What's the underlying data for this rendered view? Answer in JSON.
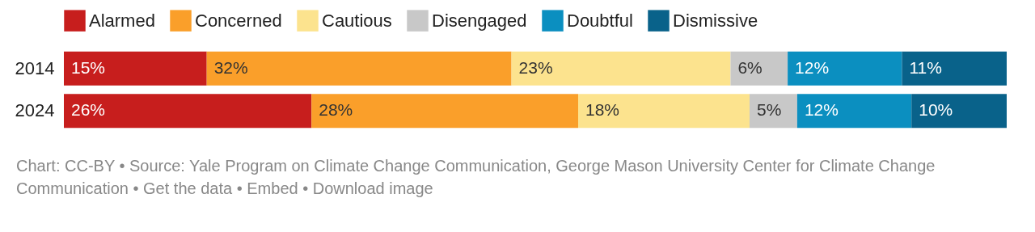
{
  "chart_data": {
    "type": "bar",
    "orientation": "horizontal",
    "stacked": true,
    "categories": [
      "2014",
      "2024"
    ],
    "series": [
      {
        "name": "Alarmed",
        "color": "#c71e1d",
        "values": [
          15,
          26
        ],
        "value_labels": [
          "15%",
          "26%"
        ]
      },
      {
        "name": "Concerned",
        "color": "#fa9f2a",
        "values": [
          32,
          28
        ],
        "value_labels": [
          "32%",
          "28%"
        ]
      },
      {
        "name": "Cautious",
        "color": "#fce38e",
        "values": [
          23,
          18
        ],
        "value_labels": [
          "23%",
          "18%"
        ]
      },
      {
        "name": "Disengaged",
        "color": "#c8c8c8",
        "values": [
          6,
          5
        ],
        "value_labels": [
          "6%",
          "5%"
        ]
      },
      {
        "name": "Doubtful",
        "color": "#0b8fc0",
        "values": [
          12,
          12
        ],
        "value_labels": [
          "12%",
          "12%"
        ]
      },
      {
        "name": "Dismissive",
        "color": "#09628a",
        "values": [
          11,
          10
        ],
        "value_labels": [
          "11%",
          "10%"
        ]
      }
    ],
    "xlim": [
      0,
      99
    ],
    "tick_labels": "y",
    "grid": false,
    "legend": "top left",
    "annotations": [
      "Chart: CC-BY • Source: Yale Program on Climate Change Communication, George Mason University Center for Climate Change Communication • Get the data • Embed • Download image"
    ]
  }
}
